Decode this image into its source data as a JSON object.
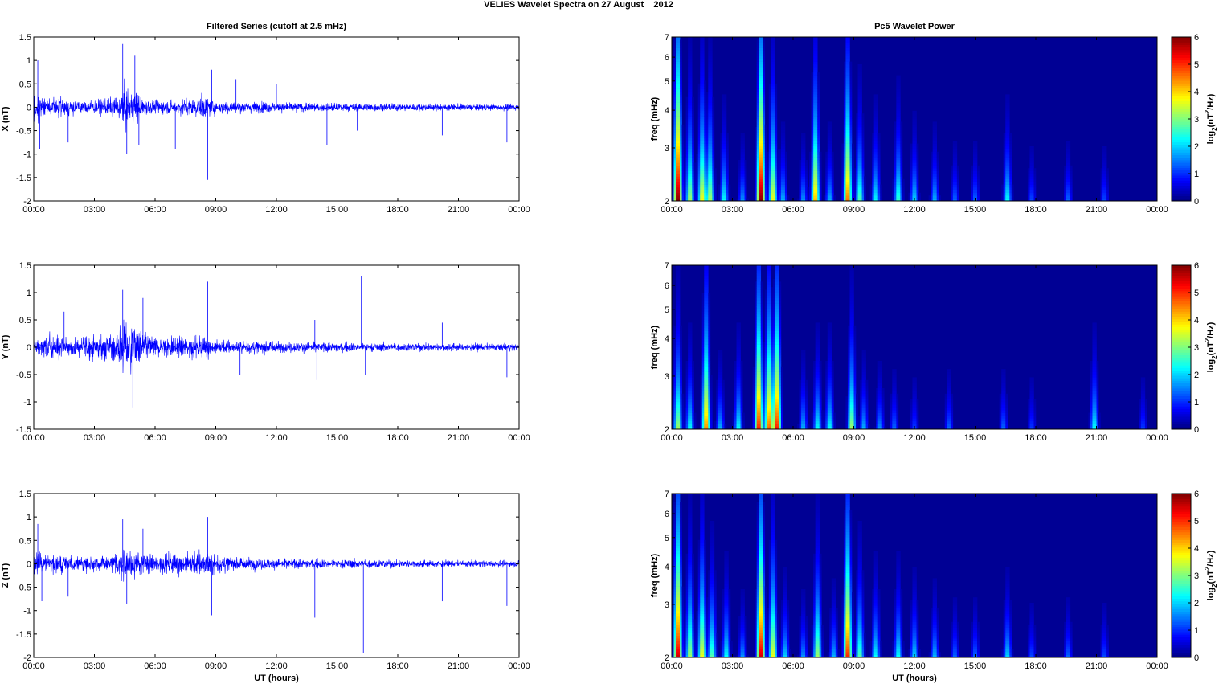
{
  "figure": {
    "title": "VELIES Wavelet Spectra on 27 August    2012"
  },
  "chart_data": [
    {
      "type": "line",
      "panel": "filtered-x",
      "title": "Filtered Series (cutoff at 2.5 mHz)",
      "ylabel": "X (nT)",
      "xlabel": "",
      "xlim_hours": [
        0,
        24
      ],
      "xticks": [
        "00:00",
        "03:00",
        "06:00",
        "09:00",
        "12:00",
        "15:00",
        "18:00",
        "21:00",
        "00:00"
      ],
      "ylim": [
        -2,
        1.5
      ],
      "yticks": [
        "-2",
        "-1.5",
        "-1",
        "-0.5",
        "0",
        "0.5",
        "1",
        "1.5"
      ],
      "color": "#0000ff",
      "activity": [
        [
          0.0,
          0.55
        ],
        [
          0.5,
          0.25
        ],
        [
          1.0,
          0.3
        ],
        [
          2.0,
          0.22
        ],
        [
          3.0,
          0.2
        ],
        [
          4.0,
          0.3
        ],
        [
          4.5,
          0.6
        ],
        [
          5.0,
          0.55
        ],
        [
          5.5,
          0.25
        ],
        [
          6.0,
          0.2
        ],
        [
          7.0,
          0.22
        ],
        [
          8.5,
          0.35
        ],
        [
          9.0,
          0.22
        ],
        [
          10.0,
          0.18
        ],
        [
          12.0,
          0.15
        ],
        [
          15.0,
          0.13
        ],
        [
          18.0,
          0.11
        ],
        [
          21.0,
          0.1
        ],
        [
          24.0,
          0.1
        ]
      ],
      "spikes": [
        [
          0.2,
          1.0
        ],
        [
          0.3,
          -0.9
        ],
        [
          1.7,
          -0.75
        ],
        [
          4.4,
          1.35
        ],
        [
          4.6,
          -1.0
        ],
        [
          5.0,
          1.1
        ],
        [
          5.2,
          -0.8
        ],
        [
          7.0,
          -0.9
        ],
        [
          8.6,
          -1.55
        ],
        [
          8.8,
          0.8
        ],
        [
          10.0,
          0.6
        ],
        [
          12.0,
          0.5
        ],
        [
          14.5,
          -0.8
        ],
        [
          16.0,
          -0.5
        ],
        [
          20.2,
          -0.6
        ],
        [
          23.4,
          -0.75
        ]
      ]
    },
    {
      "type": "line",
      "panel": "filtered-y",
      "title": "",
      "ylabel": "Y (nT)",
      "xlabel": "",
      "xlim_hours": [
        0,
        24
      ],
      "xticks": [
        "00:00",
        "03:00",
        "06:00",
        "09:00",
        "12:00",
        "15:00",
        "18:00",
        "21:00",
        "00:00"
      ],
      "ylim": [
        -1.5,
        1.5
      ],
      "yticks": [
        "-1.5",
        "-1",
        "-0.5",
        "0",
        "0.5",
        "1",
        "1.5"
      ],
      "color": "#0000ff",
      "activity": [
        [
          0.0,
          0.3
        ],
        [
          1.0,
          0.35
        ],
        [
          2.0,
          0.25
        ],
        [
          3.0,
          0.3
        ],
        [
          4.0,
          0.45
        ],
        [
          4.6,
          0.75
        ],
        [
          5.2,
          0.5
        ],
        [
          6.0,
          0.25
        ],
        [
          8.5,
          0.3
        ],
        [
          9.0,
          0.2
        ],
        [
          12.0,
          0.15
        ],
        [
          15.0,
          0.13
        ],
        [
          18.0,
          0.11
        ],
        [
          21.0,
          0.1
        ],
        [
          24.0,
          0.1
        ]
      ],
      "spikes": [
        [
          1.5,
          0.65
        ],
        [
          4.4,
          1.05
        ],
        [
          4.9,
          -1.1
        ],
        [
          5.4,
          0.9
        ],
        [
          8.6,
          1.2
        ],
        [
          10.2,
          -0.5
        ],
        [
          13.9,
          0.5
        ],
        [
          14.0,
          -0.6
        ],
        [
          16.2,
          1.3
        ],
        [
          16.4,
          -0.5
        ],
        [
          20.2,
          0.45
        ],
        [
          23.4,
          -0.55
        ]
      ]
    },
    {
      "type": "line",
      "panel": "filtered-z",
      "title": "",
      "ylabel": "Z (nT)",
      "xlabel": "UT (hours)",
      "xlim_hours": [
        0,
        24
      ],
      "xticks": [
        "00:00",
        "03:00",
        "06:00",
        "09:00",
        "12:00",
        "15:00",
        "18:00",
        "21:00",
        "00:00"
      ],
      "ylim": [
        -2,
        1.5
      ],
      "yticks": [
        "-2",
        "-1.5",
        "-1",
        "-0.5",
        "0",
        "0.5",
        "1",
        "1.5"
      ],
      "color": "#0000ff",
      "activity": [
        [
          0.0,
          0.45
        ],
        [
          0.5,
          0.3
        ],
        [
          1.0,
          0.3
        ],
        [
          2.0,
          0.25
        ],
        [
          3.0,
          0.22
        ],
        [
          4.0,
          0.3
        ],
        [
          4.5,
          0.45
        ],
        [
          5.2,
          0.35
        ],
        [
          6.0,
          0.25
        ],
        [
          8.5,
          0.45
        ],
        [
          9.0,
          0.3
        ],
        [
          10.0,
          0.2
        ],
        [
          12.0,
          0.16
        ],
        [
          15.0,
          0.14
        ],
        [
          18.0,
          0.12
        ],
        [
          21.0,
          0.1
        ],
        [
          24.0,
          0.1
        ]
      ],
      "spikes": [
        [
          0.2,
          0.85
        ],
        [
          0.4,
          -0.8
        ],
        [
          1.7,
          -0.7
        ],
        [
          4.4,
          0.95
        ],
        [
          4.6,
          -0.85
        ],
        [
          5.4,
          0.75
        ],
        [
          8.6,
          1.0
        ],
        [
          8.8,
          -1.1
        ],
        [
          13.9,
          -1.15
        ],
        [
          16.3,
          -1.9
        ],
        [
          20.2,
          -0.8
        ],
        [
          23.4,
          -0.9
        ]
      ]
    },
    {
      "type": "heatmap",
      "panel": "wavelet-x",
      "title": "Pc5 Wavelet Power",
      "ylabel": "freq (mHz)",
      "xlabel": "",
      "xlim_hours": [
        0,
        24
      ],
      "xticks": [
        "00:00",
        "03:00",
        "06:00",
        "09:00",
        "12:00",
        "15:00",
        "18:00",
        "21:00",
        "00:00"
      ],
      "ylim_mhz": [
        2,
        7
      ],
      "y_scale": "log",
      "yticks": [
        "2",
        "3",
        "4",
        "5",
        "6",
        "7"
      ],
      "colorbar": {
        "label_main": "log",
        "label_sub": "2",
        "label_rest": "(nT",
        "label_sup": "2",
        "label_end": "/Hz)",
        "range": [
          0,
          6
        ],
        "ticks": [
          "0",
          "1",
          "2",
          "3",
          "4",
          "5",
          "6"
        ],
        "colormap": "jet"
      },
      "blobs": [
        [
          0.3,
          6.5
        ],
        [
          0.9,
          3.5
        ],
        [
          1.5,
          4
        ],
        [
          1.9,
          3.5
        ],
        [
          2.6,
          2.5
        ],
        [
          3.5,
          1.8
        ],
        [
          4.4,
          6.5
        ],
        [
          5.0,
          4
        ],
        [
          5.5,
          2
        ],
        [
          6.5,
          1.8
        ],
        [
          7.1,
          4.5
        ],
        [
          7.8,
          2
        ],
        [
          8.7,
          5
        ],
        [
          9.3,
          3
        ],
        [
          10.1,
          2.5
        ],
        [
          11.2,
          2.8
        ],
        [
          12.0,
          2.2
        ],
        [
          13.0,
          2
        ],
        [
          14.0,
          1.5
        ],
        [
          15.0,
          1.5
        ],
        [
          16.6,
          2.5
        ],
        [
          17.8,
          1.3
        ],
        [
          19.6,
          1.5
        ],
        [
          21.4,
          1.3
        ]
      ]
    },
    {
      "type": "heatmap",
      "panel": "wavelet-y",
      "title": "",
      "ylabel": "freq (mHz)",
      "xlabel": "",
      "xlim_hours": [
        0,
        24
      ],
      "xticks": [
        "00:00",
        "03:00",
        "06:00",
        "09:00",
        "12:00",
        "15:00",
        "18:00",
        "21:00",
        "00:00"
      ],
      "ylim_mhz": [
        2,
        7
      ],
      "y_scale": "log",
      "yticks": [
        "2",
        "3",
        "4",
        "5",
        "6",
        "7"
      ],
      "colorbar": {
        "label_main": "log",
        "label_sub": "2",
        "label_rest": "(nT",
        "label_sup": "2",
        "label_end": "/Hz)",
        "range": [
          0,
          6
        ],
        "ticks": [
          "0",
          "1",
          "2",
          "3",
          "4",
          "5",
          "6"
        ],
        "colormap": "jet"
      },
      "blobs": [
        [
          0.3,
          3.5
        ],
        [
          0.9,
          2.5
        ],
        [
          1.7,
          4.8
        ],
        [
          2.4,
          2
        ],
        [
          3.3,
          2.5
        ],
        [
          4.3,
          5.5
        ],
        [
          4.8,
          5
        ],
        [
          5.2,
          5.5
        ],
        [
          6.5,
          2
        ],
        [
          7.2,
          2.5
        ],
        [
          7.8,
          2.5
        ],
        [
          8.9,
          3.5
        ],
        [
          9.5,
          2
        ],
        [
          10.3,
          1.8
        ],
        [
          11.0,
          1.5
        ],
        [
          12.0,
          1.2
        ],
        [
          13.7,
          1.5
        ],
        [
          16.4,
          1.5
        ],
        [
          17.8,
          1.2
        ],
        [
          20.9,
          2.5
        ],
        [
          23.3,
          1.2
        ]
      ]
    },
    {
      "type": "heatmap",
      "panel": "wavelet-z",
      "title": "",
      "ylabel": "freq (mHz)",
      "xlabel": "UT (hours)",
      "xlim_hours": [
        0,
        24
      ],
      "xticks": [
        "00:00",
        "03:00",
        "06:00",
        "09:00",
        "12:00",
        "15:00",
        "18:00",
        "21:00",
        "00:00"
      ],
      "ylim_mhz": [
        2,
        7
      ],
      "y_scale": "log",
      "yticks": [
        "2",
        "3",
        "4",
        "5",
        "6",
        "7"
      ],
      "colorbar": {
        "label_main": "log",
        "label_sub": "2",
        "label_rest": "(nT",
        "label_sup": "2",
        "label_end": "/Hz)",
        "range": [
          0,
          6
        ],
        "ticks": [
          "0",
          "1",
          "2",
          "3",
          "4",
          "5",
          "6"
        ],
        "colormap": "jet"
      },
      "blobs": [
        [
          0.3,
          6
        ],
        [
          0.9,
          3.5
        ],
        [
          1.5,
          4
        ],
        [
          2.0,
          3
        ],
        [
          2.7,
          2.5
        ],
        [
          3.5,
          1.8
        ],
        [
          4.4,
          6
        ],
        [
          5.0,
          4
        ],
        [
          5.6,
          2.2
        ],
        [
          6.5,
          1.8
        ],
        [
          7.2,
          3.5
        ],
        [
          8.0,
          2
        ],
        [
          8.7,
          5.5
        ],
        [
          9.3,
          3
        ],
        [
          10.1,
          2.5
        ],
        [
          11.2,
          2.5
        ],
        [
          12.0,
          2.2
        ],
        [
          13.0,
          2
        ],
        [
          14.0,
          1.5
        ],
        [
          15.0,
          1.5
        ],
        [
          16.6,
          2.2
        ],
        [
          17.8,
          1.3
        ],
        [
          19.6,
          1.5
        ],
        [
          21.4,
          1.3
        ]
      ]
    }
  ]
}
